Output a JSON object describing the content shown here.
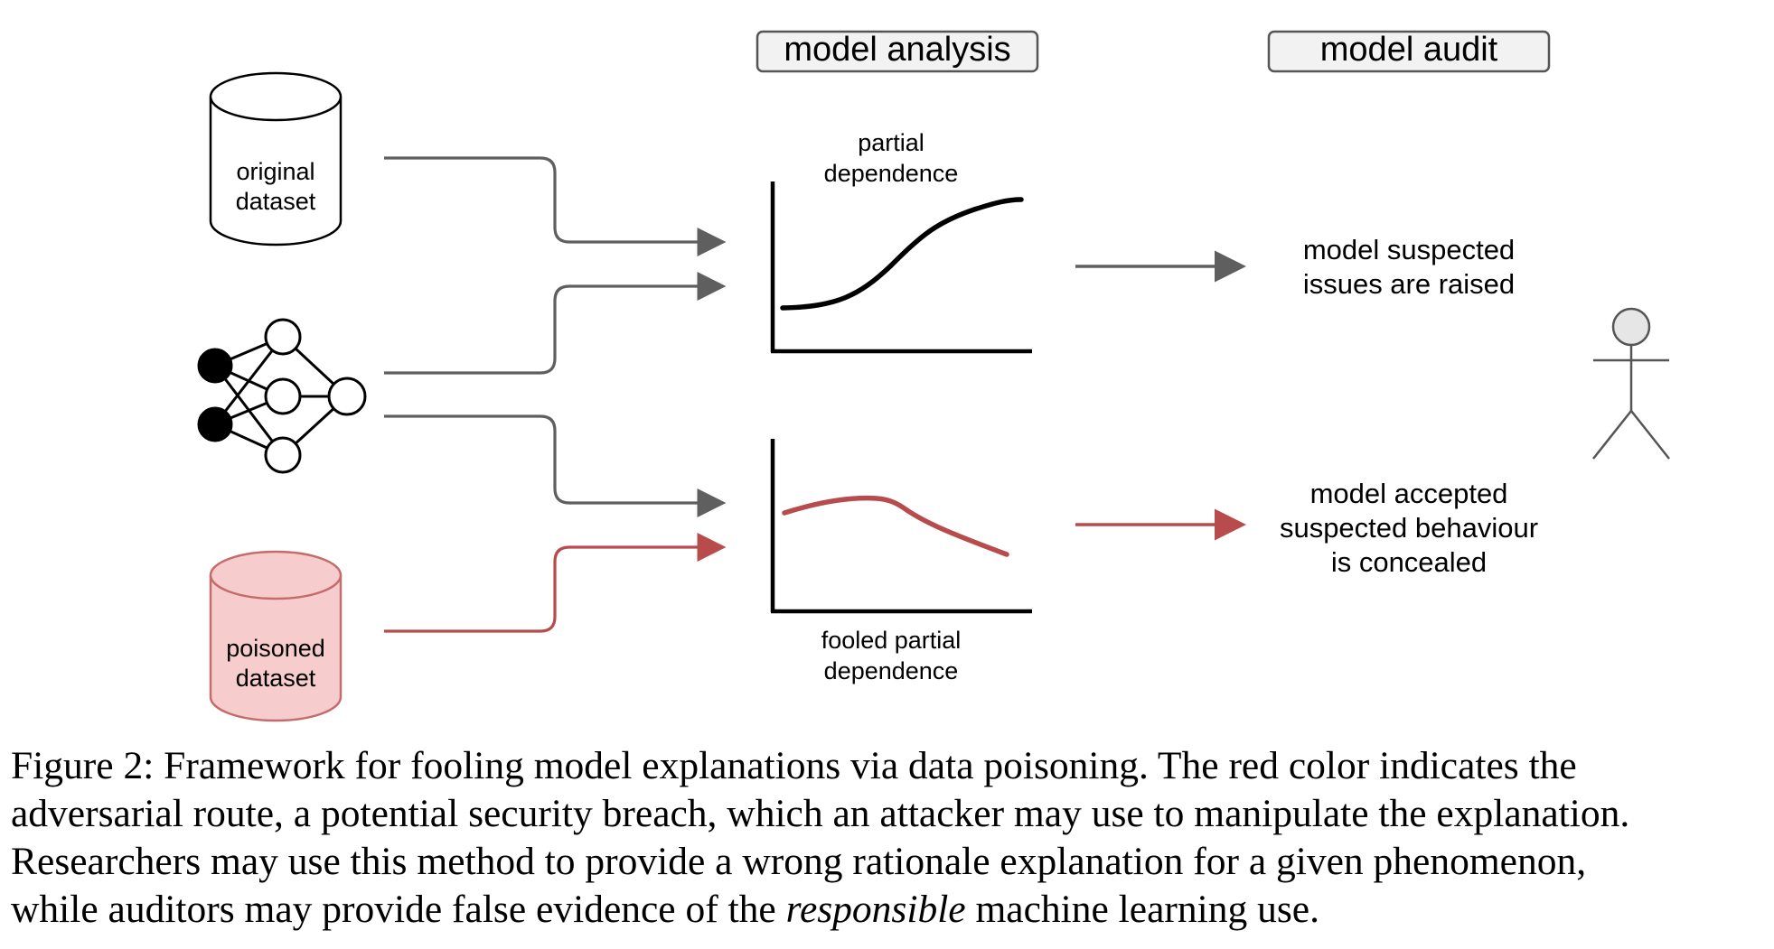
{
  "headers": {
    "analysis": "model analysis",
    "audit": "model audit"
  },
  "inputs": {
    "original_dataset": [
      "original",
      "dataset"
    ],
    "poisoned_dataset": [
      "poisoned",
      "dataset"
    ]
  },
  "plots": {
    "top_title": [
      "partial",
      "dependence"
    ],
    "bottom_title": [
      "fooled partial",
      "dependence"
    ]
  },
  "outcomes": {
    "top": [
      "model suspected",
      "issues are raised"
    ],
    "bottom": [
      "model accepted",
      "suspected behaviour",
      "is concealed"
    ]
  },
  "colors": {
    "gray_arrow": "#5f5f5f",
    "red_arrow": "#b84c4c",
    "poisoned_fill": "#f6cccc",
    "poisoned_stroke": "#c56b6b",
    "header_fill": "#f2f2f2",
    "actor_head_fill": "#e6e6e6"
  },
  "icons": {
    "dataset": "cylinder-icon",
    "model": "neural-network-icon",
    "auditor": "stick-figure-icon"
  },
  "caption": {
    "line1": "Figure 2: Framework for fooling model explanations via data poisoning. The red color indicates the",
    "line2": "adversarial route, a potential security breach, which an attacker may use to manipulate the explanation.",
    "line3": "Researchers may use this method to provide a wrong rationale explanation for a given phenomenon,",
    "line4_before": "while auditors may provide false evidence of the ",
    "line4_emphasis": "responsible",
    "line4_after": " machine learning use."
  }
}
